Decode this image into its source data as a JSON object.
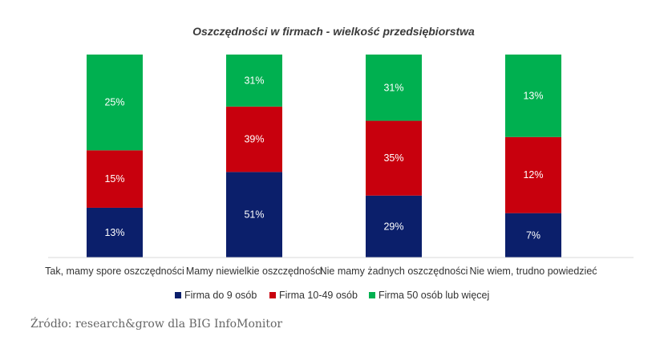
{
  "source_text": "Źródło: research&grow dla BIG InfoMonitor",
  "chart_data": {
    "type": "bar",
    "stacked": true,
    "title": "Oszczędności w firmach - wielkość przedsiębiorstwa",
    "categories": [
      "Tak, mamy spore oszczędności",
      "Mamy niewielkie oszczędności",
      "Nie mamy żadnych oszczędności",
      "Nie wiem, trudno powiedzieć"
    ],
    "series": [
      {
        "name": "Firma do 9 osób",
        "color": "#0b1f6b",
        "values": [
          13,
          51,
          29,
          7
        ],
        "labels": [
          "13%",
          "51%",
          "29%",
          "7%"
        ]
      },
      {
        "name": "Firma 10-49 osób",
        "color": "#c8000d",
        "values": [
          15,
          39,
          35,
          12
        ],
        "labels": [
          "15%",
          "39%",
          "35%",
          "12%"
        ]
      },
      {
        "name": "Firma 50 osób lub więcej",
        "color": "#00b050",
        "values": [
          25,
          31,
          31,
          13
        ],
        "labels": [
          "25%",
          "31%",
          "31%",
          "13%"
        ]
      }
    ],
    "normalized_to_100_percent": true,
    "legend_position": "bottom",
    "grid": false
  }
}
